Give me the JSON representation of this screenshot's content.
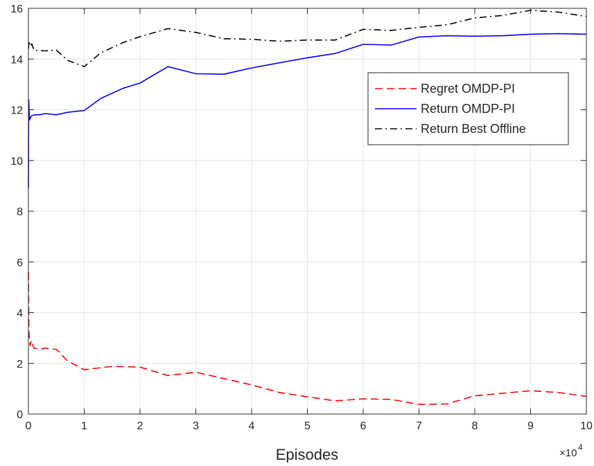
{
  "chart_data": {
    "type": "line",
    "title": "",
    "xlabel": "Episodes",
    "ylabel": "",
    "x_multiplier_label": "×10",
    "x_multiplier_exp": "4",
    "xlim": [
      0,
      10
    ],
    "ylim": [
      0,
      16
    ],
    "xticks": [
      "0",
      "1",
      "2",
      "3",
      "4",
      "5",
      "6",
      "7",
      "8",
      "9",
      "10"
    ],
    "yticks": [
      "0",
      "2",
      "4",
      "6",
      "8",
      "10",
      "12",
      "14",
      "16"
    ],
    "grid": true,
    "legend_position": "top-right",
    "series": [
      {
        "name": "Regret OMDP-PI",
        "color": "#ff0000",
        "dash": "dashed",
        "points": [
          [
            0.0,
            5.6
          ],
          [
            0.01,
            3.2
          ],
          [
            0.03,
            2.7
          ],
          [
            0.05,
            2.9
          ],
          [
            0.1,
            2.6
          ],
          [
            0.2,
            2.55
          ],
          [
            0.3,
            2.6
          ],
          [
            0.5,
            2.55
          ],
          [
            0.7,
            2.1
          ],
          [
            1.0,
            1.75
          ],
          [
            1.5,
            1.88
          ],
          [
            2.0,
            1.85
          ],
          [
            2.5,
            1.52
          ],
          [
            3.0,
            1.65
          ],
          [
            3.5,
            1.4
          ],
          [
            4.0,
            1.15
          ],
          [
            4.5,
            0.85
          ],
          [
            5.0,
            0.68
          ],
          [
            5.5,
            0.52
          ],
          [
            6.0,
            0.6
          ],
          [
            6.5,
            0.58
          ],
          [
            7.0,
            0.38
          ],
          [
            7.5,
            0.4
          ],
          [
            8.0,
            0.72
          ],
          [
            8.5,
            0.82
          ],
          [
            9.0,
            0.92
          ],
          [
            9.5,
            0.85
          ],
          [
            10.0,
            0.7
          ]
        ]
      },
      {
        "name": "Return OMDP-PI",
        "color": "#0000ff",
        "dash": "solid",
        "points": [
          [
            0.0,
            8.9
          ],
          [
            0.005,
            12.4
          ],
          [
            0.02,
            11.6
          ],
          [
            0.05,
            11.75
          ],
          [
            0.1,
            11.8
          ],
          [
            0.2,
            11.8
          ],
          [
            0.3,
            11.85
          ],
          [
            0.5,
            11.8
          ],
          [
            0.7,
            11.9
          ],
          [
            1.0,
            11.97
          ],
          [
            1.3,
            12.45
          ],
          [
            1.7,
            12.85
          ],
          [
            2.0,
            13.05
          ],
          [
            2.5,
            13.7
          ],
          [
            3.0,
            13.42
          ],
          [
            3.5,
            13.4
          ],
          [
            4.0,
            13.65
          ],
          [
            4.5,
            13.85
          ],
          [
            5.0,
            14.05
          ],
          [
            5.5,
            14.22
          ],
          [
            6.0,
            14.58
          ],
          [
            6.5,
            14.55
          ],
          [
            7.0,
            14.87
          ],
          [
            7.5,
            14.92
          ],
          [
            8.0,
            14.9
          ],
          [
            8.5,
            14.92
          ],
          [
            9.0,
            14.98
          ],
          [
            9.5,
            15.0
          ],
          [
            10.0,
            14.98
          ]
        ]
      },
      {
        "name": "Return Best Offline",
        "color": "#000000",
        "dash": "dashdot",
        "points": [
          [
            0.0,
            14.4
          ],
          [
            0.01,
            14.72
          ],
          [
            0.03,
            14.5
          ],
          [
            0.06,
            14.6
          ],
          [
            0.1,
            14.35
          ],
          [
            0.3,
            14.32
          ],
          [
            0.5,
            14.35
          ],
          [
            0.7,
            13.95
          ],
          [
            1.0,
            13.7
          ],
          [
            1.3,
            14.25
          ],
          [
            1.7,
            14.65
          ],
          [
            2.0,
            14.88
          ],
          [
            2.5,
            15.2
          ],
          [
            3.0,
            15.05
          ],
          [
            3.5,
            14.8
          ],
          [
            4.0,
            14.78
          ],
          [
            4.5,
            14.7
          ],
          [
            5.0,
            14.75
          ],
          [
            5.5,
            14.75
          ],
          [
            6.0,
            15.17
          ],
          [
            6.5,
            15.13
          ],
          [
            7.0,
            15.25
          ],
          [
            7.5,
            15.35
          ],
          [
            8.0,
            15.62
          ],
          [
            8.5,
            15.72
          ],
          [
            9.0,
            15.92
          ],
          [
            9.5,
            15.85
          ],
          [
            10.0,
            15.68
          ]
        ]
      }
    ]
  }
}
